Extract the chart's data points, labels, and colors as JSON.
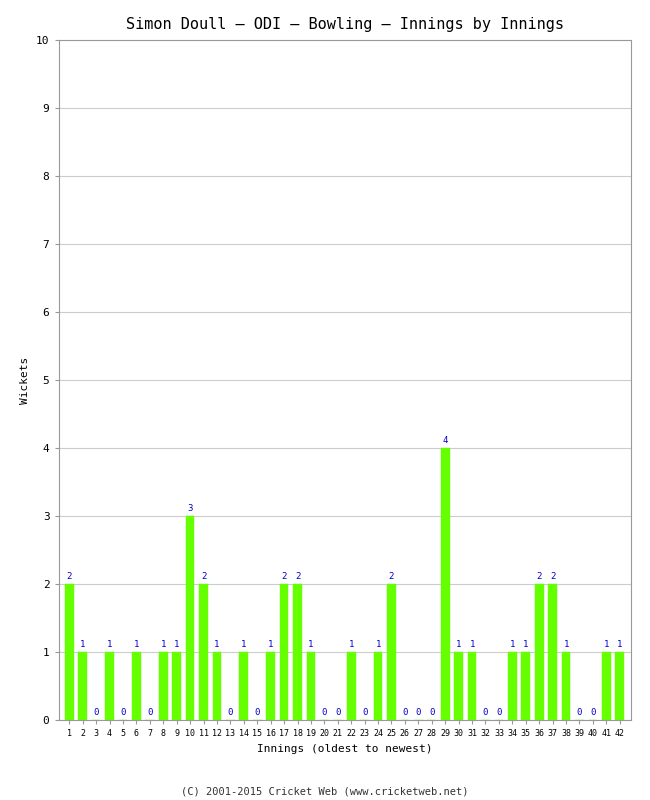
{
  "title": "Simon Doull – ODI – Bowling – Innings by Innings",
  "xlabel": "Innings (oldest to newest)",
  "ylabel": "Wickets",
  "footer": "(C) 2001-2015 Cricket Web (www.cricketweb.net)",
  "ylim": [
    0,
    10
  ],
  "yticks": [
    0,
    1,
    2,
    3,
    4,
    5,
    6,
    7,
    8,
    9,
    10
  ],
  "bar_color": "#66FF00",
  "bar_edge_color": "#66FF00",
  "label_color": "#0000CC",
  "background_color": "#FFFFFF",
  "grid_color": "#CCCCCC",
  "innings": [
    1,
    2,
    3,
    4,
    5,
    6,
    7,
    8,
    9,
    10,
    11,
    12,
    13,
    14,
    15,
    16,
    17,
    18,
    19,
    20,
    21,
    22,
    23,
    24,
    25,
    26,
    27,
    28,
    29,
    30,
    31,
    32,
    33,
    34,
    35,
    36,
    37,
    38,
    39,
    40,
    41,
    42
  ],
  "wickets": [
    2,
    1,
    0,
    1,
    0,
    1,
    0,
    1,
    1,
    3,
    2,
    1,
    0,
    1,
    0,
    1,
    2,
    2,
    1,
    0,
    0,
    1,
    0,
    1,
    2,
    0,
    0,
    0,
    4,
    1,
    1,
    0,
    0,
    1,
    1,
    2,
    2,
    1,
    0,
    0,
    1,
    1
  ],
  "figsize": [
    6.5,
    8.0
  ],
  "dpi": 100
}
